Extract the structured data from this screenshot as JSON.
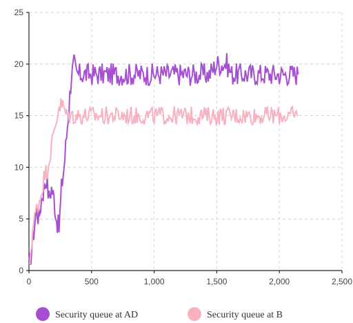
{
  "chart_data": {
    "type": "line",
    "title": "",
    "xlabel": "",
    "ylabel": "",
    "xlim": [
      0,
      2500
    ],
    "ylim": [
      0,
      25
    ],
    "x_ticks": [
      0,
      500,
      1000,
      1500,
      2000,
      2500
    ],
    "x_tick_labels": [
      "0",
      "500",
      "1,000",
      "1,500",
      "2,000",
      "2,500"
    ],
    "y_ticks": [
      0,
      5,
      10,
      15,
      20,
      25
    ],
    "y_tick_labels": [
      "0",
      "5",
      "10",
      "15",
      "20",
      "25"
    ],
    "grid": true,
    "legend_position": "bottom",
    "series": [
      {
        "name": "Security queue at  AD",
        "color": "#a64fd2",
        "x": [
          0,
          30,
          60,
          80,
          100,
          120,
          140,
          160,
          180,
          200,
          220,
          240,
          260,
          280,
          300,
          320,
          340,
          360,
          380,
          420,
          480,
          560,
          640,
          720,
          800,
          880,
          960,
          1040,
          1120,
          1200,
          1280,
          1360,
          1440,
          1500,
          1540,
          1580,
          1620,
          1680,
          1760,
          1840,
          1920,
          2000,
          2080,
          2150
        ],
        "y": [
          0,
          3,
          6,
          5,
          7,
          8,
          9,
          7,
          8,
          7,
          5,
          4,
          8,
          10,
          13,
          16,
          19,
          20,
          19,
          19,
          19,
          19,
          19,
          19,
          19,
          19,
          19,
          19,
          19,
          19,
          19,
          19,
          19,
          20,
          20,
          20,
          19,
          19,
          19,
          19,
          19,
          19,
          19,
          19
        ]
      },
      {
        "name": "Security queue at  B",
        "color": "#f7b2bf",
        "x": [
          0,
          30,
          60,
          90,
          120,
          150,
          180,
          210,
          240,
          270,
          300,
          340,
          400,
          480,
          560,
          640,
          720,
          800,
          880,
          960,
          1040,
          1120,
          1200,
          1280,
          1360,
          1440,
          1520,
          1600,
          1680,
          1760,
          1840,
          1920,
          2000,
          2080,
          2150
        ],
        "y": [
          0,
          4,
          6,
          7,
          9,
          10,
          12,
          14,
          16,
          16,
          15,
          15,
          15,
          15,
          15,
          15,
          15,
          15,
          15,
          15,
          15,
          15,
          15,
          15,
          15,
          15,
          15,
          15,
          15,
          15,
          15,
          15,
          15,
          15,
          15
        ]
      }
    ]
  }
}
